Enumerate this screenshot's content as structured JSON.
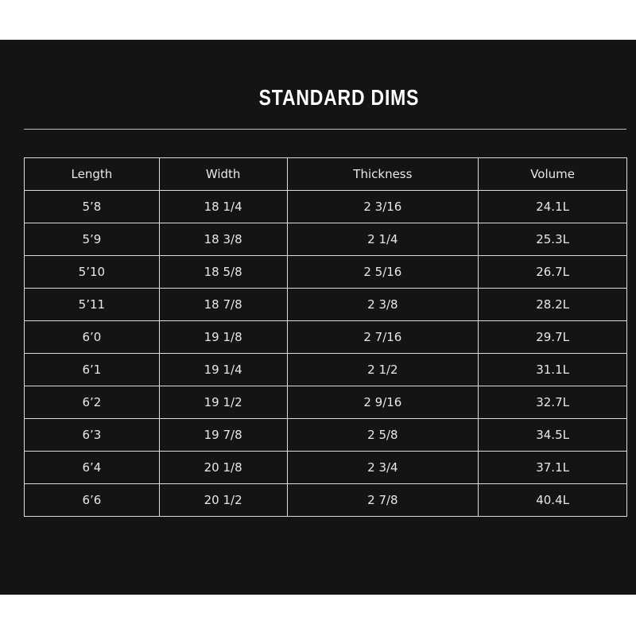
{
  "header": {
    "title": "STANDARD DIMS"
  },
  "table": {
    "columns": [
      "Length",
      "Width",
      "Thickness",
      "Volume"
    ],
    "rows": [
      [
        "5’8",
        "18 1/4",
        "2 3/16",
        "24.1L"
      ],
      [
        "5’9",
        "18 3/8",
        "2 1/4",
        "25.3L"
      ],
      [
        "5’10",
        "18 5/8",
        "2 5/16",
        "26.7L"
      ],
      [
        "5’11",
        "18 7/8",
        "2 3/8",
        "28.2L"
      ],
      [
        "6’0",
        "19 1/8",
        "2 7/16",
        "29.7L"
      ],
      [
        "6’1",
        "19 1/4",
        "2 1/2",
        "31.1L"
      ],
      [
        "6’2",
        "19 1/2",
        "2 9/16",
        "32.7L"
      ],
      [
        "6’3",
        "19 7/8",
        "2 5/8",
        "34.5L"
      ],
      [
        "6’4",
        "20 1/8",
        "2 3/4",
        "37.1L"
      ],
      [
        "6’6",
        "20 1/2",
        "2 7/8",
        "40.4L"
      ]
    ]
  }
}
